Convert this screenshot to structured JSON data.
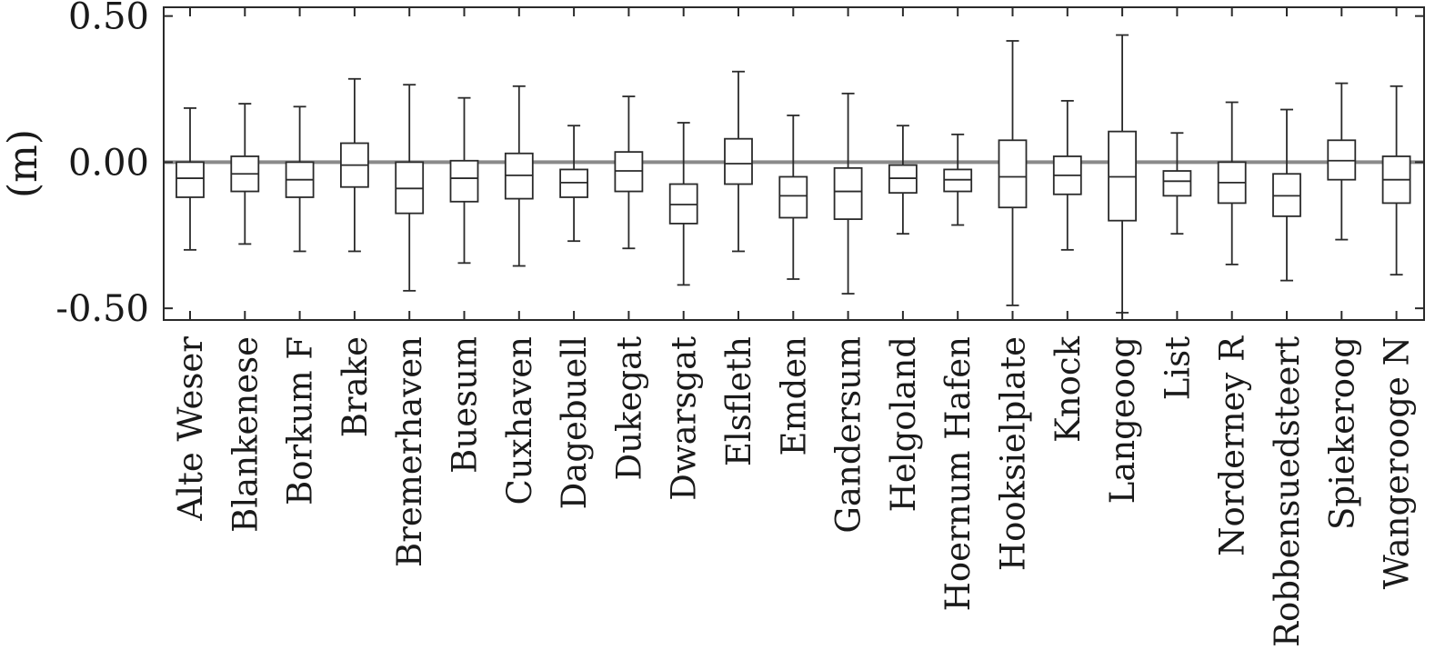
{
  "chart_data": {
    "type": "box",
    "title": "",
    "xlabel": "",
    "ylabel": "(m)",
    "ylim": [
      -0.54,
      0.53
    ],
    "yticks": [
      {
        "value": 0.5,
        "label": "0.50"
      },
      {
        "value": 0.0,
        "label": "0.00"
      },
      {
        "value": -0.5,
        "label": "-0.50"
      }
    ],
    "reference_line": {
      "value": 0.0,
      "color": "#8a8a8a"
    },
    "grid": false,
    "categories": [
      "Alte Weser",
      "Blankenese",
      "Borkum F",
      "Brake",
      "Bremerhaven",
      "Buesum",
      "Cuxhaven",
      "Dagebuell",
      "Dukegat",
      "Dwarsgat",
      "Elsfleth",
      "Emden",
      "Gandersum",
      "Helgoland",
      "Hoernum Hafen",
      "Hooksielplate",
      "Knock",
      "Langeoog",
      "List",
      "Norderney R",
      "Robbensuedsteert",
      "Spiekeroog",
      "Wangerooge N"
    ],
    "boxes": [
      {
        "min": -0.3,
        "q1": -0.12,
        "median": -0.055,
        "q3": 0.0,
        "max": 0.185
      },
      {
        "min": -0.28,
        "q1": -0.1,
        "median": -0.04,
        "q3": 0.02,
        "max": 0.2
      },
      {
        "min": -0.305,
        "q1": -0.12,
        "median": -0.06,
        "q3": 0.0,
        "max": 0.19
      },
      {
        "min": -0.305,
        "q1": -0.085,
        "median": -0.01,
        "q3": 0.065,
        "max": 0.285
      },
      {
        "min": -0.44,
        "q1": -0.175,
        "median": -0.09,
        "q3": 0.0,
        "max": 0.265
      },
      {
        "min": -0.345,
        "q1": -0.135,
        "median": -0.055,
        "q3": 0.005,
        "max": 0.22
      },
      {
        "min": -0.355,
        "q1": -0.125,
        "median": -0.045,
        "q3": 0.03,
        "max": 0.26
      },
      {
        "min": -0.27,
        "q1": -0.12,
        "median": -0.07,
        "q3": -0.025,
        "max": 0.125
      },
      {
        "min": -0.295,
        "q1": -0.1,
        "median": -0.03,
        "q3": 0.035,
        "max": 0.225
      },
      {
        "min": -0.42,
        "q1": -0.21,
        "median": -0.145,
        "q3": -0.075,
        "max": 0.135
      },
      {
        "min": -0.305,
        "q1": -0.075,
        "median": -0.005,
        "q3": 0.08,
        "max": 0.31
      },
      {
        "min": -0.4,
        "q1": -0.19,
        "median": -0.115,
        "q3": -0.05,
        "max": 0.16
      },
      {
        "min": -0.45,
        "q1": -0.195,
        "median": -0.1,
        "q3": -0.02,
        "max": 0.235
      },
      {
        "min": -0.245,
        "q1": -0.105,
        "median": -0.055,
        "q3": -0.01,
        "max": 0.125
      },
      {
        "min": -0.215,
        "q1": -0.1,
        "median": -0.06,
        "q3": -0.025,
        "max": 0.095
      },
      {
        "min": -0.49,
        "q1": -0.155,
        "median": -0.05,
        "q3": 0.075,
        "max": 0.415
      },
      {
        "min": -0.3,
        "q1": -0.11,
        "median": -0.045,
        "q3": 0.02,
        "max": 0.21
      },
      {
        "min": -0.515,
        "q1": -0.2,
        "median": -0.05,
        "q3": 0.105,
        "max": 0.435
      },
      {
        "min": -0.245,
        "q1": -0.115,
        "median": -0.065,
        "q3": -0.03,
        "max": 0.1
      },
      {
        "min": -0.35,
        "q1": -0.14,
        "median": -0.07,
        "q3": 0.0,
        "max": 0.205
      },
      {
        "min": -0.405,
        "q1": -0.185,
        "median": -0.115,
        "q3": -0.04,
        "max": 0.18
      },
      {
        "min": -0.265,
        "q1": -0.06,
        "median": 0.005,
        "q3": 0.075,
        "max": 0.27
      },
      {
        "min": -0.385,
        "q1": -0.14,
        "median": -0.06,
        "q3": 0.02,
        "max": 0.26
      }
    ]
  }
}
